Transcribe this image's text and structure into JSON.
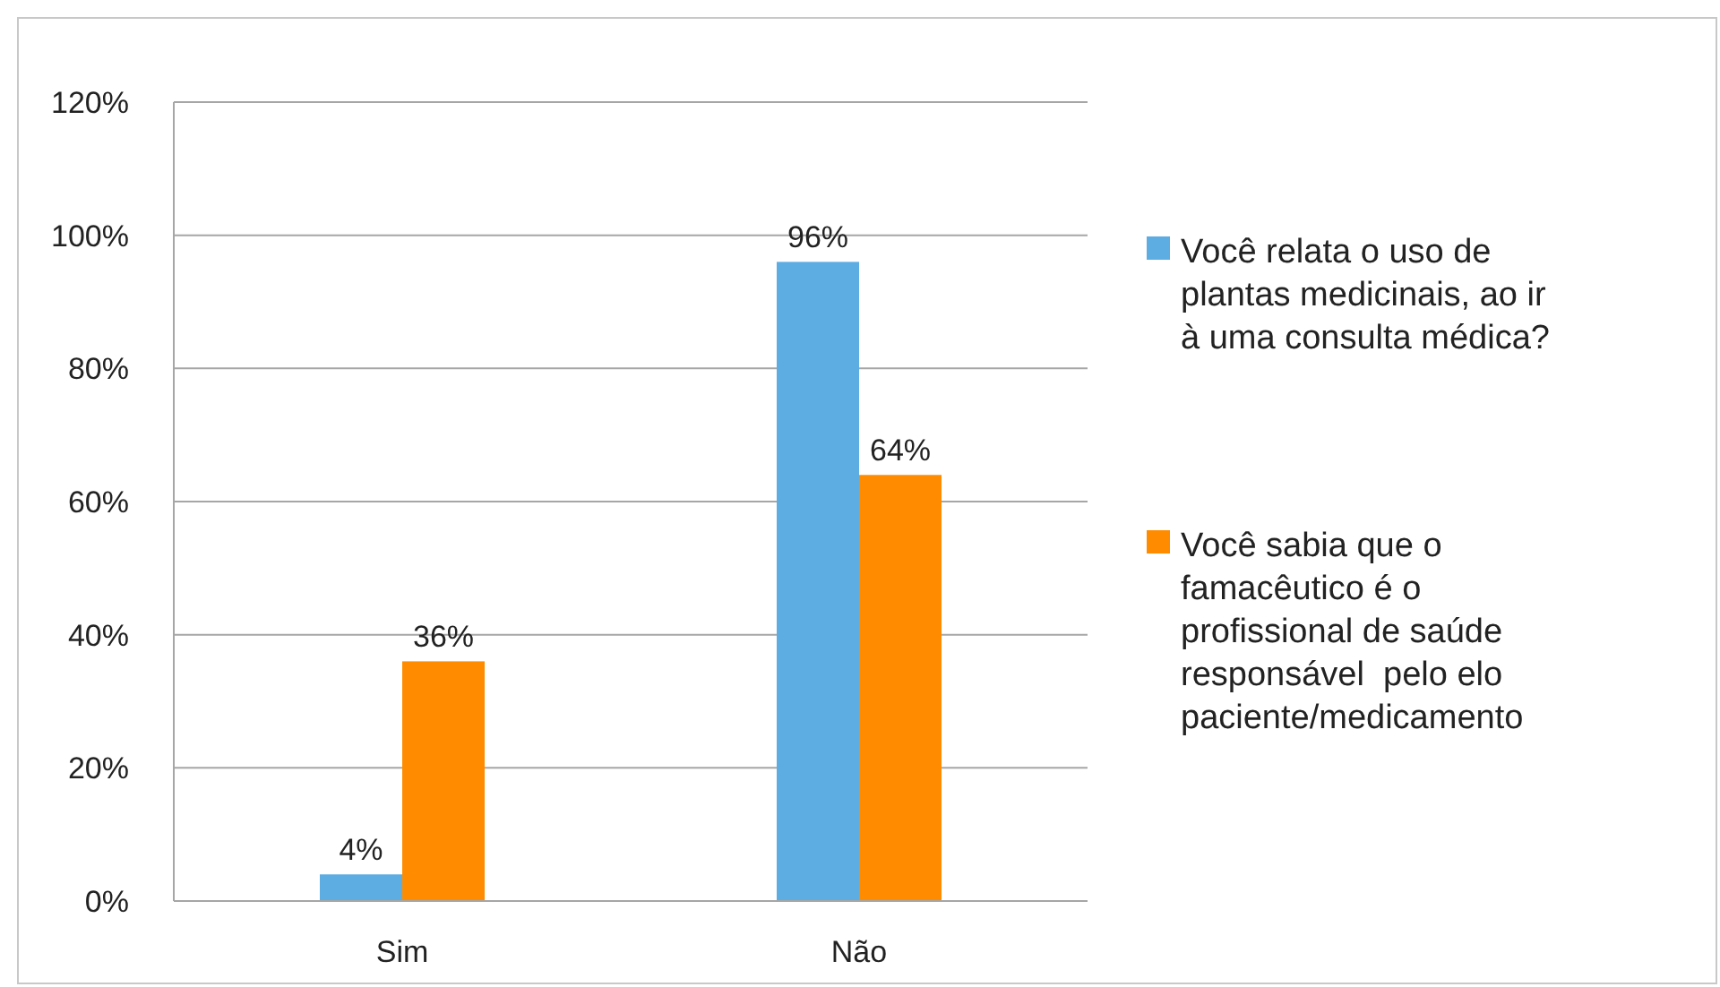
{
  "chart_data": {
    "type": "bar",
    "categories": [
      "Sim",
      "Não"
    ],
    "series": [
      {
        "name": "Você relata o uso de plantas medicinais, ao ir à uma consulta médica?",
        "color": "#5dade2",
        "values": [
          4,
          96
        ],
        "value_labels": [
          "4%",
          "96%"
        ]
      },
      {
        "name": "Você sabia que o famacêutico é o profissional de saúde responsável  pelo elo paciente/medicamento",
        "color": "#ff8c00",
        "values": [
          36,
          64
        ],
        "value_labels": [
          "36%",
          "64%"
        ]
      }
    ],
    "ylim": [
      0,
      120
    ],
    "yticks": [
      {
        "value": 0,
        "label": "0%"
      },
      {
        "value": 20,
        "label": "20%"
      },
      {
        "value": 40,
        "label": "40%"
      },
      {
        "value": 60,
        "label": "60%"
      },
      {
        "value": 80,
        "label": "80%"
      },
      {
        "value": 100,
        "label": "100%"
      },
      {
        "value": 120,
        "label": "120%"
      }
    ],
    "grid": "y",
    "legend": "right"
  }
}
